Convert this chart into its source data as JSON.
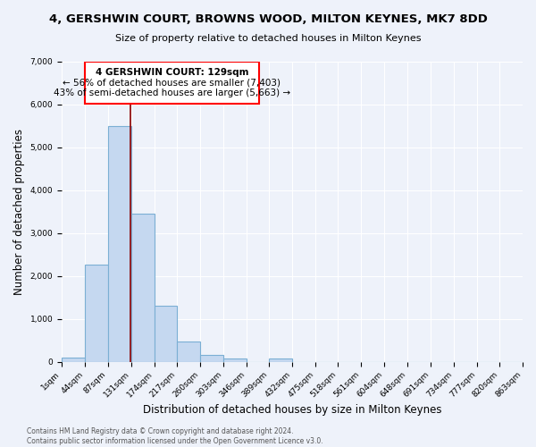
{
  "title_line1": "4, GERSHWIN COURT, BROWNS WOOD, MILTON KEYNES, MK7 8DD",
  "title_line2": "Size of property relative to detached houses in Milton Keynes",
  "xlabel": "Distribution of detached houses by size in Milton Keynes",
  "ylabel": "Number of detached properties",
  "bin_edges": [
    1,
    44,
    87,
    131,
    174,
    217,
    260,
    303,
    346,
    389,
    432,
    475,
    518,
    561,
    604,
    648,
    691,
    734,
    777,
    820,
    863
  ],
  "bar_heights": [
    100,
    2270,
    5500,
    3450,
    1300,
    480,
    165,
    80,
    0,
    70,
    0,
    0,
    0,
    0,
    0,
    0,
    0,
    0,
    0,
    0
  ],
  "bar_color": "#c5d8f0",
  "bar_edge_color": "#7bafd4",
  "red_line_x": 129,
  "annotation_text_line1": "4 GERSHWIN COURT: 129sqm",
  "annotation_text_line2": "← 56% of detached houses are smaller (7,403)",
  "annotation_text_line3": "43% of semi-detached houses are larger (5,663) →",
  "ylim": [
    0,
    7000
  ],
  "yticks": [
    0,
    1000,
    2000,
    3000,
    4000,
    5000,
    6000,
    7000
  ],
  "background_color": "#eef2fa",
  "grid_color": "#ffffff",
  "footer_line1": "Contains HM Land Registry data © Crown copyright and database right 2024.",
  "footer_line2": "Contains public sector information licensed under the Open Government Licence v3.0.",
  "tick_label_fontsize": 6.5,
  "axis_label_fontsize": 8.5,
  "title1_fontsize": 9.5,
  "title2_fontsize": 8,
  "annotation_fontsize": 7.5,
  "footer_fontsize": 5.5
}
